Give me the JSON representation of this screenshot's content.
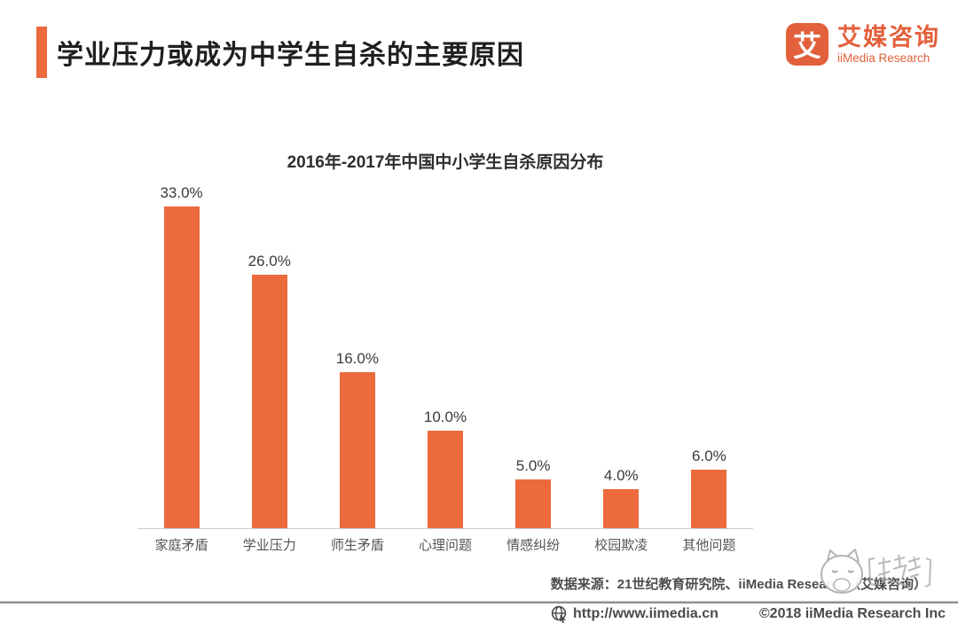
{
  "header": {
    "title": "学业压力或成为中学生自杀的主要原因",
    "logo": {
      "mark": "艾",
      "name_cn": "艾媒咨询",
      "name_en": "iiMedia Research"
    }
  },
  "chart_data": {
    "type": "bar",
    "title": "2016年-2017年中国中小学生自杀原因分布",
    "categories": [
      "家庭矛盾",
      "学业压力",
      "师生矛盾",
      "心理问题",
      "情感纠纷",
      "校园欺凌",
      "其他问题"
    ],
    "values": [
      33.0,
      26.0,
      16.0,
      10.0,
      5.0,
      4.0,
      6.0
    ],
    "value_labels": [
      "33.0%",
      "26.0%",
      "16.0%",
      "10.0%",
      "5.0%",
      "4.0%",
      "6.0%"
    ],
    "xlabel": "",
    "ylabel": "",
    "ylim": [
      0,
      35
    ],
    "grid": false,
    "legend_position": "none",
    "bar_color": "#ED6A3C"
  },
  "source_note": "数据来源：21世纪教育研究院、iiMedia Research（艾媒咨询）",
  "watermark": {
    "description": "cat-face-sticker"
  },
  "footer": {
    "url": "http://www.iimedia.cn",
    "copyright": "©2018 iiMedia Research Inc"
  },
  "colors": {
    "accent_orange": "#ED6A3C",
    "logo_orange": "#E2603B",
    "axis_gray": "#cccccc",
    "divider_gray": "#8f8f8f"
  }
}
